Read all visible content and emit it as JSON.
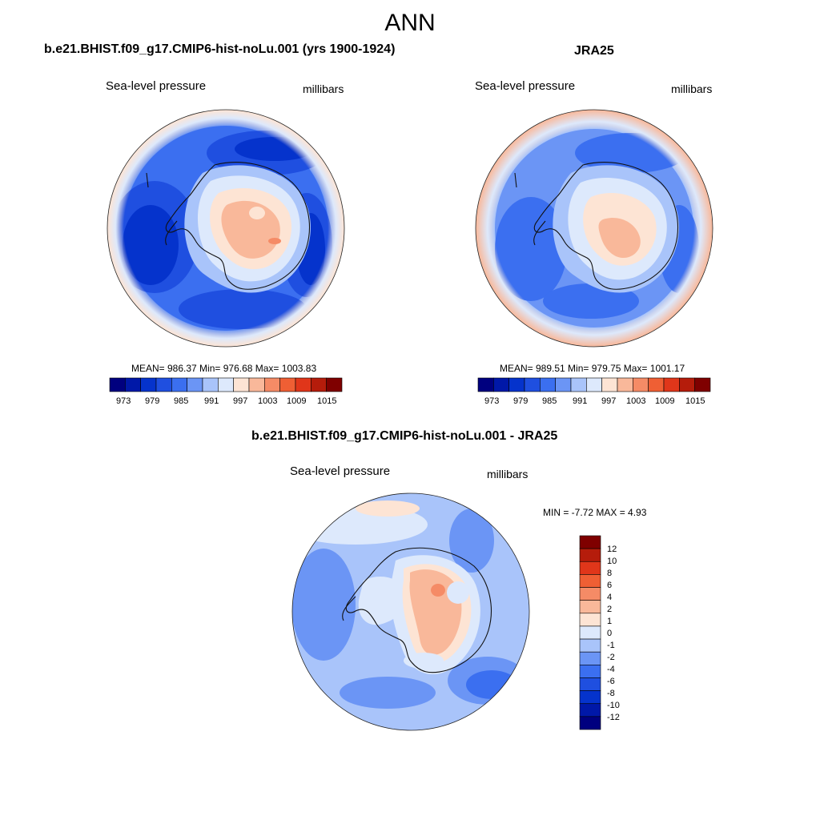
{
  "title": "ANN",
  "panels": [
    {
      "id": "model",
      "title": "b.e21.BHIST.f09_g17.CMIP6-hist-noLu.001 (yrs 1900-1924)",
      "variable": "Sea-level pressure",
      "units": "millibars",
      "stats": "MEAN= 986.37  Min= 976.68  Max= 1003.83",
      "colorbar_ticks": [
        "973",
        "979",
        "985",
        "991",
        "997",
        "1003",
        "1009",
        "1015"
      ]
    },
    {
      "id": "obs",
      "title": "JRA25",
      "variable": "Sea-level pressure",
      "units": "millibars",
      "stats": "MEAN= 989.51  Min= 979.75  Max= 1001.17",
      "colorbar_ticks": [
        "973",
        "979",
        "985",
        "991",
        "997",
        "1003",
        "1009",
        "1015"
      ]
    },
    {
      "id": "diff",
      "title": "b.e21.BHIST.f09_g17.CMIP6-hist-noLu.001 - JRA25",
      "variable": "Sea-level pressure",
      "units": "millibars",
      "stats": "MIN =  -7.72 MAX =   4.93",
      "colorbar_ticks": [
        "12",
        "10",
        "8",
        "6",
        "4",
        "2",
        "1",
        "0",
        "-1",
        "-2",
        "-4",
        "-6",
        "-8",
        "-10",
        "-12"
      ]
    }
  ],
  "colors": {
    "abs_scale": [
      "#00007f",
      "#0018a8",
      "#0533cc",
      "#1f4fe0",
      "#3b6ff0",
      "#6b95f5",
      "#a9c4fa",
      "#dde9fc",
      "#fde4d4",
      "#f9b89a",
      "#f58b66",
      "#ef5f34",
      "#e0361a",
      "#b51c0b",
      "#7f0000"
    ],
    "diff_scale": [
      "#7f0000",
      "#b51c0b",
      "#e0361a",
      "#ef5f34",
      "#f58b66",
      "#f9b89a",
      "#fde4d4",
      "#dde9fc",
      "#a9c4fa",
      "#6b95f5",
      "#3b6ff0",
      "#1f4fe0",
      "#0533cc",
      "#0018a8",
      "#00007f"
    ]
  }
}
